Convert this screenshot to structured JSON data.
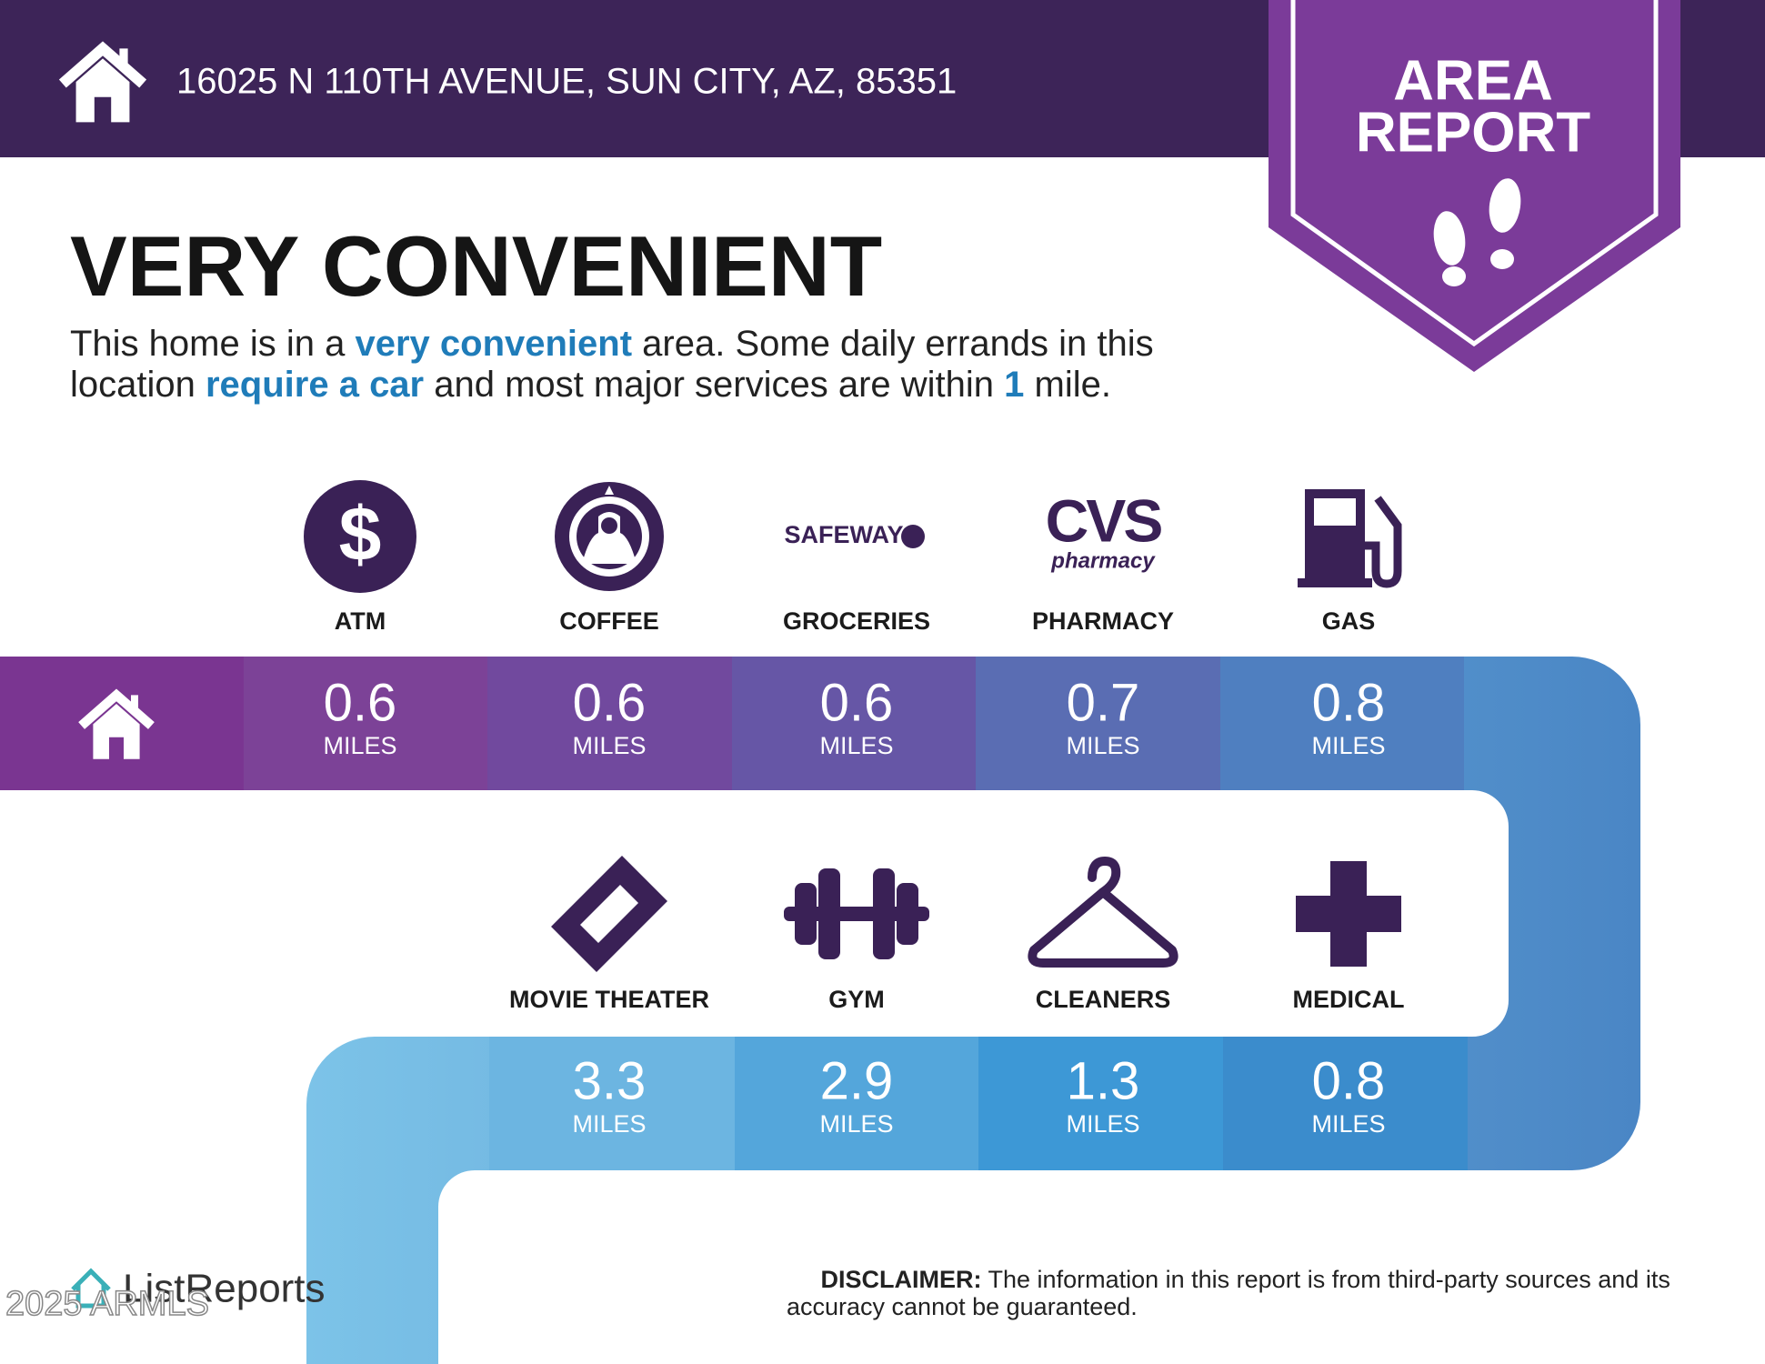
{
  "header": {
    "address": "16025 N 110TH AVENUE, SUN CITY, AZ, 85351"
  },
  "badge": {
    "lines": [
      "AREA",
      "REPORT"
    ]
  },
  "headline": "VERY CONVENIENT",
  "description": {
    "lines": [
      [
        {
          "text": "This home is in a ",
          "emphasis": false
        },
        {
          "text": "very convenient",
          "emphasis": true
        },
        {
          "text": " area. Some daily errands in this",
          "emphasis": false
        }
      ],
      [
        {
          "text": "location ",
          "emphasis": false
        },
        {
          "text": "require a car",
          "emphasis": true
        },
        {
          "text": " and most major services are within ",
          "emphasis": false
        },
        {
          "text": "1",
          "emphasis": true
        },
        {
          "text": " mile.",
          "emphasis": false
        }
      ]
    ]
  },
  "amenities": [
    {
      "label": "ATM",
      "symbol": "$",
      "distance": 0.6,
      "unit": "MILES"
    },
    {
      "label": "COFFEE",
      "distance": 0.6,
      "unit": "MILES"
    },
    {
      "label": "GROCERIES",
      "logo": "SAFEWAY",
      "distance": 0.6,
      "unit": "MILES"
    },
    {
      "label": "PHARMACY",
      "logo": "CVS",
      "logo_sub": "pharmacy",
      "distance": 0.7,
      "unit": "MILES"
    },
    {
      "label": "GAS",
      "distance": 0.8,
      "unit": "MILES"
    },
    {
      "label": "MOVIE THEATER",
      "distance": 3.3,
      "unit": "MILES"
    },
    {
      "label": "GYM",
      "distance": 2.9,
      "unit": "MILES"
    },
    {
      "label": "CLEANERS",
      "distance": 1.3,
      "unit": "MILES"
    },
    {
      "label": "MEDICAL",
      "distance": 0.8,
      "unit": "MILES"
    }
  ],
  "footer": {
    "brand": "ListReports",
    "watermark": "2025 ARMLS",
    "disclaimer_label": "DISCLAIMER:",
    "disclaimer": [
      "The information in this report is from third-party sources and its",
      "accuracy cannot be guaranteed."
    ]
  }
}
